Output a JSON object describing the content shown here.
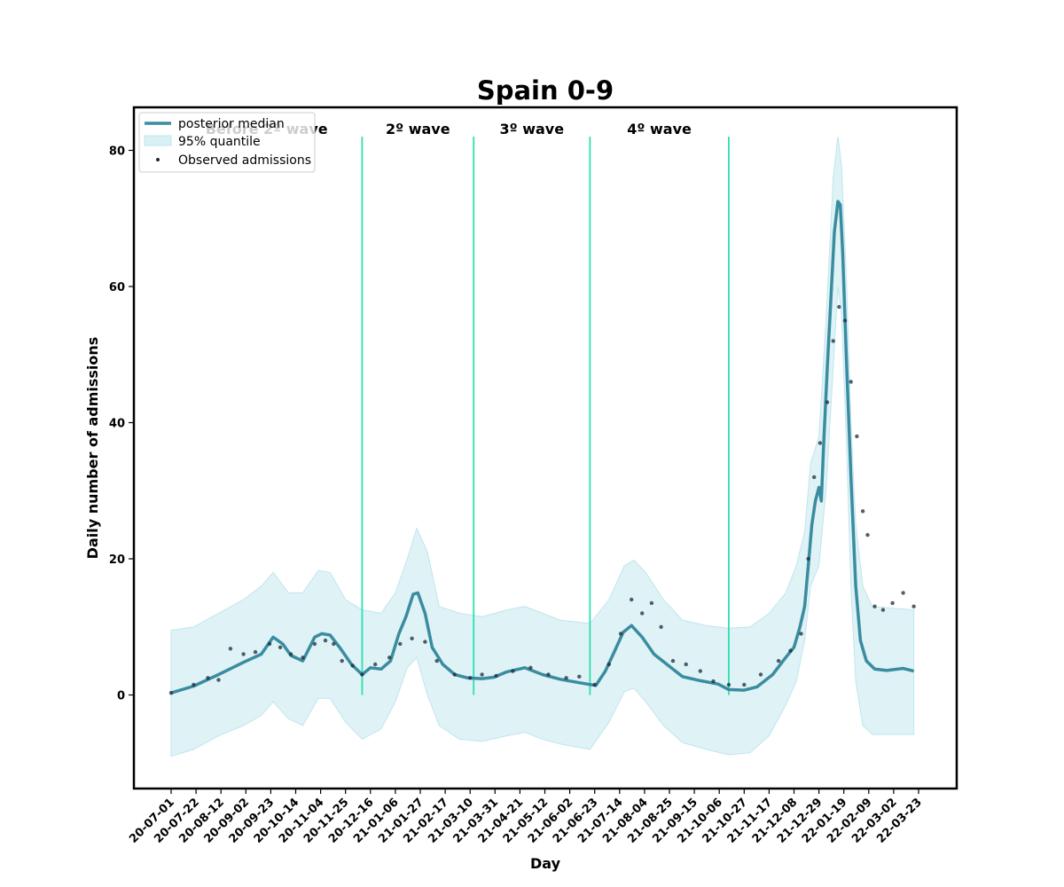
{
  "chart_data": {
    "type": "line",
    "title": "Spain 0-9",
    "xlabel": "Day",
    "ylabel": "Daily number of admissions",
    "x_range": [
      "2020-07-01",
      "2022-03-23"
    ],
    "ylim": [
      -13,
      86
    ],
    "yticks": [
      0,
      20,
      40,
      60,
      80
    ],
    "xticks": [
      "20-07-01",
      "20-07-22",
      "20-08-12",
      "20-09-02",
      "20-09-23",
      "20-10-14",
      "20-11-04",
      "20-11-25",
      "20-12-16",
      "21-01-06",
      "21-01-27",
      "21-02-17",
      "21-03-10",
      "21-03-31",
      "21-04-21",
      "21-05-12",
      "21-06-02",
      "21-06-23",
      "21-07-14",
      "21-08-04",
      "21-08-25",
      "21-09-15",
      "21-10-06",
      "21-10-27",
      "21-11-17",
      "21-12-08",
      "21-12-29",
      "22-01-19",
      "22-02-09",
      "22-03-02",
      "22-03-23"
    ],
    "legend": {
      "position": "top-left",
      "entries": [
        "posterior median",
        "95% quantile",
        "Observed admissions"
      ]
    },
    "colors": {
      "median": "#3a8ca0",
      "band": "#bfe6ee",
      "points": "#1b2a3a",
      "wave_lines": "#2ee0b0"
    },
    "waves": [
      {
        "label": "Before 2º wave",
        "start": "2020-07-01",
        "end": "2020-12-09"
      },
      {
        "label": "2º wave",
        "start": "2020-12-09",
        "end": "2021-03-13"
      },
      {
        "label": "3º wave",
        "start": "2021-03-13",
        "end": "2021-06-19"
      },
      {
        "label": "4º wave",
        "start": "2021-06-19",
        "end": "2021-10-14"
      }
    ],
    "wave_boundaries": [
      "2020-12-09",
      "2021-03-13",
      "2021-06-19",
      "2021-10-14"
    ],
    "median": [
      [
        "2020-07-01",
        0.3
      ],
      [
        "2020-07-20",
        1.3
      ],
      [
        "2020-08-10",
        3.0
      ],
      [
        "2020-08-31",
        4.8
      ],
      [
        "2020-09-15",
        6.0
      ],
      [
        "2020-09-25",
        8.5
      ],
      [
        "2020-10-03",
        7.5
      ],
      [
        "2020-10-10",
        5.8
      ],
      [
        "2020-10-20",
        5.0
      ],
      [
        "2020-10-30",
        8.5
      ],
      [
        "2020-11-05",
        9.0
      ],
      [
        "2020-11-12",
        8.8
      ],
      [
        "2020-11-20",
        7.0
      ],
      [
        "2020-11-30",
        4.5
      ],
      [
        "2020-12-09",
        3.0
      ],
      [
        "2020-12-16",
        4.0
      ],
      [
        "2020-12-25",
        3.8
      ],
      [
        "2021-01-02",
        5.0
      ],
      [
        "2021-01-09",
        9.0
      ],
      [
        "2021-01-15",
        11.5
      ],
      [
        "2021-01-21",
        14.8
      ],
      [
        "2021-01-25",
        15.0
      ],
      [
        "2021-01-31",
        12.0
      ],
      [
        "2021-02-06",
        7.0
      ],
      [
        "2021-02-15",
        4.5
      ],
      [
        "2021-02-25",
        3.0
      ],
      [
        "2021-03-08",
        2.5
      ],
      [
        "2021-03-20",
        2.4
      ],
      [
        "2021-03-30",
        2.6
      ],
      [
        "2021-04-10",
        3.4
      ],
      [
        "2021-04-25",
        4.0
      ],
      [
        "2021-05-10",
        3.0
      ],
      [
        "2021-05-25",
        2.3
      ],
      [
        "2021-06-10",
        1.8
      ],
      [
        "2021-06-24",
        1.4
      ],
      [
        "2021-07-02",
        3.5
      ],
      [
        "2021-07-10",
        6.5
      ],
      [
        "2021-07-17",
        9.2
      ],
      [
        "2021-07-24",
        10.2
      ],
      [
        "2021-08-02",
        8.5
      ],
      [
        "2021-08-12",
        6.0
      ],
      [
        "2021-08-25",
        4.2
      ],
      [
        "2021-09-05",
        2.7
      ],
      [
        "2021-09-20",
        2.1
      ],
      [
        "2021-10-05",
        1.6
      ],
      [
        "2021-10-14",
        0.8
      ],
      [
        "2021-10-27",
        0.7
      ],
      [
        "2021-11-07",
        1.2
      ],
      [
        "2021-11-20",
        3.0
      ],
      [
        "2021-12-01",
        5.5
      ],
      [
        "2021-12-08",
        7.0
      ],
      [
        "2021-12-13",
        10.0
      ],
      [
        "2021-12-17",
        13.0
      ],
      [
        "2021-12-20",
        19.0
      ],
      [
        "2021-12-23",
        25.0
      ],
      [
        "2021-12-26",
        28.5
      ],
      [
        "2021-12-29",
        30.5
      ],
      [
        "2021-12-31",
        28.5
      ],
      [
        "2022-01-02",
        37.0
      ],
      [
        "2022-01-05",
        48.0
      ],
      [
        "2022-01-08",
        58.0
      ],
      [
        "2022-01-11",
        68.0
      ],
      [
        "2022-01-14",
        72.5
      ],
      [
        "2022-01-16",
        72.0
      ],
      [
        "2022-01-18",
        65.0
      ],
      [
        "2022-01-21",
        50.0
      ],
      [
        "2022-01-25",
        32.0
      ],
      [
        "2022-01-29",
        16.0
      ],
      [
        "2022-02-02",
        8.0
      ],
      [
        "2022-02-07",
        5.0
      ],
      [
        "2022-02-14",
        3.8
      ],
      [
        "2022-02-24",
        3.6
      ],
      [
        "2022-03-10",
        3.9
      ],
      [
        "2022-03-19",
        3.5
      ]
    ],
    "band_upper": [
      [
        "2020-07-01",
        9.5
      ],
      [
        "2020-07-20",
        10.0
      ],
      [
        "2020-08-10",
        12.0
      ],
      [
        "2020-08-31",
        14.0
      ],
      [
        "2020-09-15",
        16.0
      ],
      [
        "2020-09-25",
        18.0
      ],
      [
        "2020-10-08",
        15.0
      ],
      [
        "2020-10-20",
        15.0
      ],
      [
        "2020-11-02",
        18.3
      ],
      [
        "2020-11-12",
        18.0
      ],
      [
        "2020-11-25",
        14.0
      ],
      [
        "2020-12-09",
        12.5
      ],
      [
        "2020-12-25",
        12.0
      ],
      [
        "2021-01-06",
        15.0
      ],
      [
        "2021-01-16",
        20.0
      ],
      [
        "2021-01-24",
        24.5
      ],
      [
        "2021-02-02",
        21.0
      ],
      [
        "2021-02-12",
        13.0
      ],
      [
        "2021-03-01",
        12.0
      ],
      [
        "2021-03-20",
        11.5
      ],
      [
        "2021-04-10",
        12.5
      ],
      [
        "2021-04-25",
        13.0
      ],
      [
        "2021-05-10",
        12.0
      ],
      [
        "2021-05-25",
        11.0
      ],
      [
        "2021-06-19",
        10.5
      ],
      [
        "2021-07-05",
        14.0
      ],
      [
        "2021-07-18",
        19.0
      ],
      [
        "2021-07-26",
        19.8
      ],
      [
        "2021-08-05",
        18.0
      ],
      [
        "2021-08-20",
        14.0
      ],
      [
        "2021-09-05",
        11.0
      ],
      [
        "2021-09-25",
        10.2
      ],
      [
        "2021-10-14",
        9.8
      ],
      [
        "2021-11-01",
        10.0
      ],
      [
        "2021-11-17",
        12.0
      ],
      [
        "2021-12-01",
        15.0
      ],
      [
        "2021-12-10",
        19.0
      ],
      [
        "2021-12-17",
        24.0
      ],
      [
        "2021-12-22",
        34.0
      ],
      [
        "2021-12-29",
        38.0
      ],
      [
        "2022-01-04",
        55.0
      ],
      [
        "2022-01-10",
        76.0
      ],
      [
        "2022-01-14",
        82.0
      ],
      [
        "2022-01-17",
        78.0
      ],
      [
        "2022-01-21",
        62.0
      ],
      [
        "2022-01-25",
        40.0
      ],
      [
        "2022-01-29",
        25.0
      ],
      [
        "2022-02-04",
        16.0
      ],
      [
        "2022-02-12",
        13.0
      ],
      [
        "2022-03-19",
        12.5
      ]
    ],
    "band_lower": [
      [
        "2020-07-01",
        -9.0
      ],
      [
        "2020-07-20",
        -8.0
      ],
      [
        "2020-08-10",
        -6.0
      ],
      [
        "2020-08-31",
        -4.5
      ],
      [
        "2020-09-15",
        -3.0
      ],
      [
        "2020-09-25",
        -1.0
      ],
      [
        "2020-10-08",
        -3.5
      ],
      [
        "2020-10-20",
        -4.5
      ],
      [
        "2020-11-02",
        -0.5
      ],
      [
        "2020-11-12",
        -0.5
      ],
      [
        "2020-11-25",
        -4.0
      ],
      [
        "2020-12-09",
        -6.5
      ],
      [
        "2020-12-25",
        -5.0
      ],
      [
        "2021-01-06",
        -1.0
      ],
      [
        "2021-01-16",
        4.0
      ],
      [
        "2021-01-24",
        5.5
      ],
      [
        "2021-02-02",
        0.0
      ],
      [
        "2021-02-12",
        -4.5
      ],
      [
        "2021-03-01",
        -6.5
      ],
      [
        "2021-03-20",
        -6.8
      ],
      [
        "2021-04-10",
        -6.0
      ],
      [
        "2021-04-25",
        -5.5
      ],
      [
        "2021-05-10",
        -6.5
      ],
      [
        "2021-05-25",
        -7.2
      ],
      [
        "2021-06-19",
        -8.0
      ],
      [
        "2021-07-05",
        -4.0
      ],
      [
        "2021-07-18",
        0.5
      ],
      [
        "2021-07-26",
        1.0
      ],
      [
        "2021-08-05",
        -1.0
      ],
      [
        "2021-08-20",
        -4.5
      ],
      [
        "2021-09-05",
        -7.0
      ],
      [
        "2021-09-25",
        -8.0
      ],
      [
        "2021-10-14",
        -8.8
      ],
      [
        "2021-11-01",
        -8.5
      ],
      [
        "2021-11-17",
        -6.0
      ],
      [
        "2021-12-01",
        -1.5
      ],
      [
        "2021-12-10",
        2.0
      ],
      [
        "2021-12-17",
        8.0
      ],
      [
        "2021-12-22",
        16.0
      ],
      [
        "2021-12-29",
        19.0
      ],
      [
        "2022-01-04",
        30.0
      ],
      [
        "2022-01-10",
        48.0
      ],
      [
        "2022-01-14",
        60.0
      ],
      [
        "2022-01-17",
        56.0
      ],
      [
        "2022-01-21",
        38.0
      ],
      [
        "2022-01-25",
        16.0
      ],
      [
        "2022-01-29",
        2.0
      ],
      [
        "2022-02-04",
        -4.5
      ],
      [
        "2022-02-12",
        -5.8
      ],
      [
        "2022-03-19",
        -5.8
      ]
    ],
    "observed": [
      [
        "2020-07-01",
        0.3
      ],
      [
        "2020-07-20",
        1.5
      ],
      [
        "2020-08-01",
        2.5
      ],
      [
        "2020-08-10",
        2.2
      ],
      [
        "2020-08-20",
        6.8
      ],
      [
        "2020-08-31",
        6.0
      ],
      [
        "2020-09-10",
        6.3
      ],
      [
        "2020-09-22",
        7.5
      ],
      [
        "2020-10-01",
        7.0
      ],
      [
        "2020-10-10",
        6.0
      ],
      [
        "2020-10-20",
        5.5
      ],
      [
        "2020-10-30",
        7.5
      ],
      [
        "2020-11-08",
        8.0
      ],
      [
        "2020-11-15",
        7.5
      ],
      [
        "2020-11-22",
        5.0
      ],
      [
        "2020-12-01",
        4.3
      ],
      [
        "2020-12-09",
        3.0
      ],
      [
        "2020-12-20",
        4.5
      ],
      [
        "2021-01-01",
        5.5
      ],
      [
        "2021-01-10",
        7.5
      ],
      [
        "2021-01-20",
        8.3
      ],
      [
        "2021-01-31",
        7.8
      ],
      [
        "2021-02-10",
        5.0
      ],
      [
        "2021-02-25",
        3.0
      ],
      [
        "2021-03-10",
        2.5
      ],
      [
        "2021-03-20",
        3.0
      ],
      [
        "2021-04-01",
        2.8
      ],
      [
        "2021-04-15",
        3.5
      ],
      [
        "2021-04-30",
        4.0
      ],
      [
        "2021-05-15",
        3.0
      ],
      [
        "2021-05-30",
        2.5
      ],
      [
        "2021-06-10",
        2.7
      ],
      [
        "2021-06-23",
        1.5
      ],
      [
        "2021-07-05",
        4.5
      ],
      [
        "2021-07-15",
        9.0
      ],
      [
        "2021-07-24",
        14.0
      ],
      [
        "2021-08-02",
        12.0
      ],
      [
        "2021-08-10",
        13.5
      ],
      [
        "2021-08-18",
        10.0
      ],
      [
        "2021-08-28",
        5.0
      ],
      [
        "2021-09-08",
        4.5
      ],
      [
        "2021-09-20",
        3.5
      ],
      [
        "2021-10-01",
        2.0
      ],
      [
        "2021-10-14",
        1.5
      ],
      [
        "2021-10-27",
        1.5
      ],
      [
        "2021-11-10",
        3.0
      ],
      [
        "2021-11-25",
        5.0
      ],
      [
        "2021-12-05",
        6.5
      ],
      [
        "2021-12-14",
        9.0
      ],
      [
        "2021-12-20",
        20.0
      ],
      [
        "2021-12-25",
        32.0
      ],
      [
        "2021-12-30",
        37.0
      ],
      [
        "2022-01-05",
        43.0
      ],
      [
        "2022-01-10",
        52.0
      ],
      [
        "2022-01-15",
        57.0
      ],
      [
        "2022-01-20",
        55.0
      ],
      [
        "2022-01-25",
        46.0
      ],
      [
        "2022-01-30",
        38.0
      ],
      [
        "2022-02-04",
        27.0
      ],
      [
        "2022-02-08",
        23.5
      ],
      [
        "2022-02-14",
        13.0
      ],
      [
        "2022-02-21",
        12.5
      ],
      [
        "2022-03-01",
        13.5
      ],
      [
        "2022-03-10",
        15.0
      ],
      [
        "2022-03-19",
        13.0
      ]
    ]
  }
}
